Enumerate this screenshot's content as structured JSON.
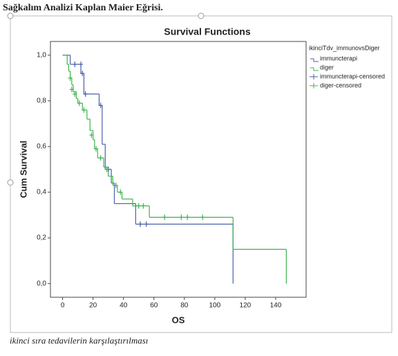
{
  "header": {
    "title": "Sağkalım Analizi Kaplan Maier Eğrisi."
  },
  "caption": "ikinci sıra tedavilerin karşılaştırılması",
  "chart_data": {
    "type": "step",
    "title": "Survival Functions",
    "x_label": "OS",
    "y_label": "Cum Survival",
    "legend_title": "ikinciTdv_immunovsDiger",
    "legend_position": "right",
    "xlim": [
      -8,
      160
    ],
    "ylim": [
      -0.06,
      1.06
    ],
    "xticks": [
      0,
      20,
      40,
      60,
      80,
      100,
      120,
      140
    ],
    "yticks": [
      {
        "value": 0,
        "label": "0,0"
      },
      {
        "value": 0.2,
        "label": "0,2"
      },
      {
        "value": 0.4,
        "label": "0,4"
      },
      {
        "value": 0.6,
        "label": "0,6"
      },
      {
        "value": 0.8,
        "label": "0,8"
      },
      {
        "value": 1,
        "label": "1,0"
      }
    ],
    "series": [
      {
        "name": "immuncterapi",
        "kind": "step",
        "color": "#4a5ea8",
        "x": [
          0,
          5,
          12,
          14,
          24,
          26,
          28,
          32,
          34,
          48,
          112
        ],
        "values": [
          1.0,
          0.96,
          0.92,
          0.83,
          0.78,
          0.61,
          0.5,
          0.44,
          0.35,
          0.26,
          0
        ]
      },
      {
        "name": "diger",
        "kind": "step",
        "color": "#3cb44a",
        "x": [
          0,
          3,
          4,
          5,
          6,
          7,
          9,
          10,
          13,
          16,
          18,
          20,
          21,
          23,
          27,
          30,
          33,
          36,
          39,
          46,
          57,
          112,
          147
        ],
        "values": [
          1.0,
          0.96,
          0.93,
          0.9,
          0.87,
          0.84,
          0.81,
          0.79,
          0.76,
          0.72,
          0.67,
          0.63,
          0.59,
          0.55,
          0.51,
          0.47,
          0.43,
          0.4,
          0.37,
          0.34,
          0.29,
          0.15,
          0
        ]
      },
      {
        "name": "immuncterapi-censored",
        "kind": "censor",
        "color": "#4a5ea8",
        "x": [
          8,
          12,
          13,
          15,
          25,
          30,
          51,
          55
        ],
        "values": [
          0.96,
          0.96,
          0.92,
          0.83,
          0.78,
          0.5,
          0.26,
          0.26
        ]
      },
      {
        "name": "diger-censored",
        "kind": "censor",
        "color": "#3cb44a",
        "x": [
          5,
          6,
          8,
          11,
          14,
          19,
          22,
          25,
          29,
          35,
          38,
          50,
          53,
          67,
          78,
          82,
          92
        ],
        "values": [
          0.9,
          0.85,
          0.83,
          0.79,
          0.76,
          0.65,
          0.59,
          0.55,
          0.5,
          0.43,
          0.4,
          0.34,
          0.34,
          0.29,
          0.29,
          0.29,
          0.29
        ]
      }
    ]
  }
}
